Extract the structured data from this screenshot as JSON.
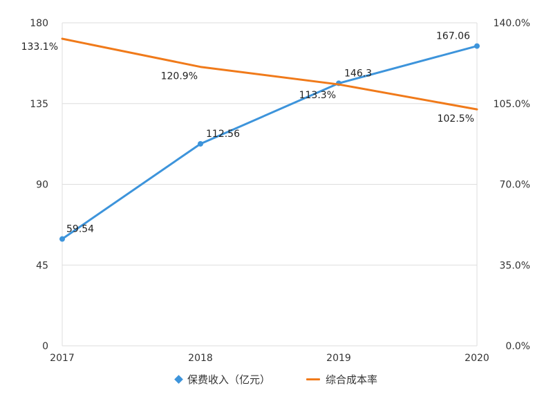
{
  "chart_data": {
    "type": "line",
    "categories": [
      "2017",
      "2018",
      "2019",
      "2020"
    ],
    "series": [
      {
        "name": "保费收入（亿元）",
        "axis": "left",
        "values": [
          59.54,
          112.56,
          146.3,
          167.06
        ],
        "labels": [
          "59.54",
          "112.56",
          "146.3",
          "167.06"
        ],
        "color": "#3d94db"
      },
      {
        "name": "综合成本率",
        "axis": "right",
        "values": [
          133.1,
          120.9,
          113.3,
          102.5
        ],
        "labels": [
          "133.1%",
          "120.9%",
          "113.3%",
          "102.5%"
        ],
        "color": "#f07a1a"
      }
    ],
    "y_left": {
      "min": 0,
      "max": 180,
      "ticks": [
        "0",
        "45",
        "90",
        "135",
        "180"
      ]
    },
    "y_right": {
      "min": 0,
      "max": 140,
      "ticks": [
        "0.0%",
        "35.0%",
        "70.0%",
        "105.0%",
        "140.0%"
      ]
    },
    "grid": true,
    "legend_position": "bottom-center",
    "gridline_color": "#dddddd"
  }
}
